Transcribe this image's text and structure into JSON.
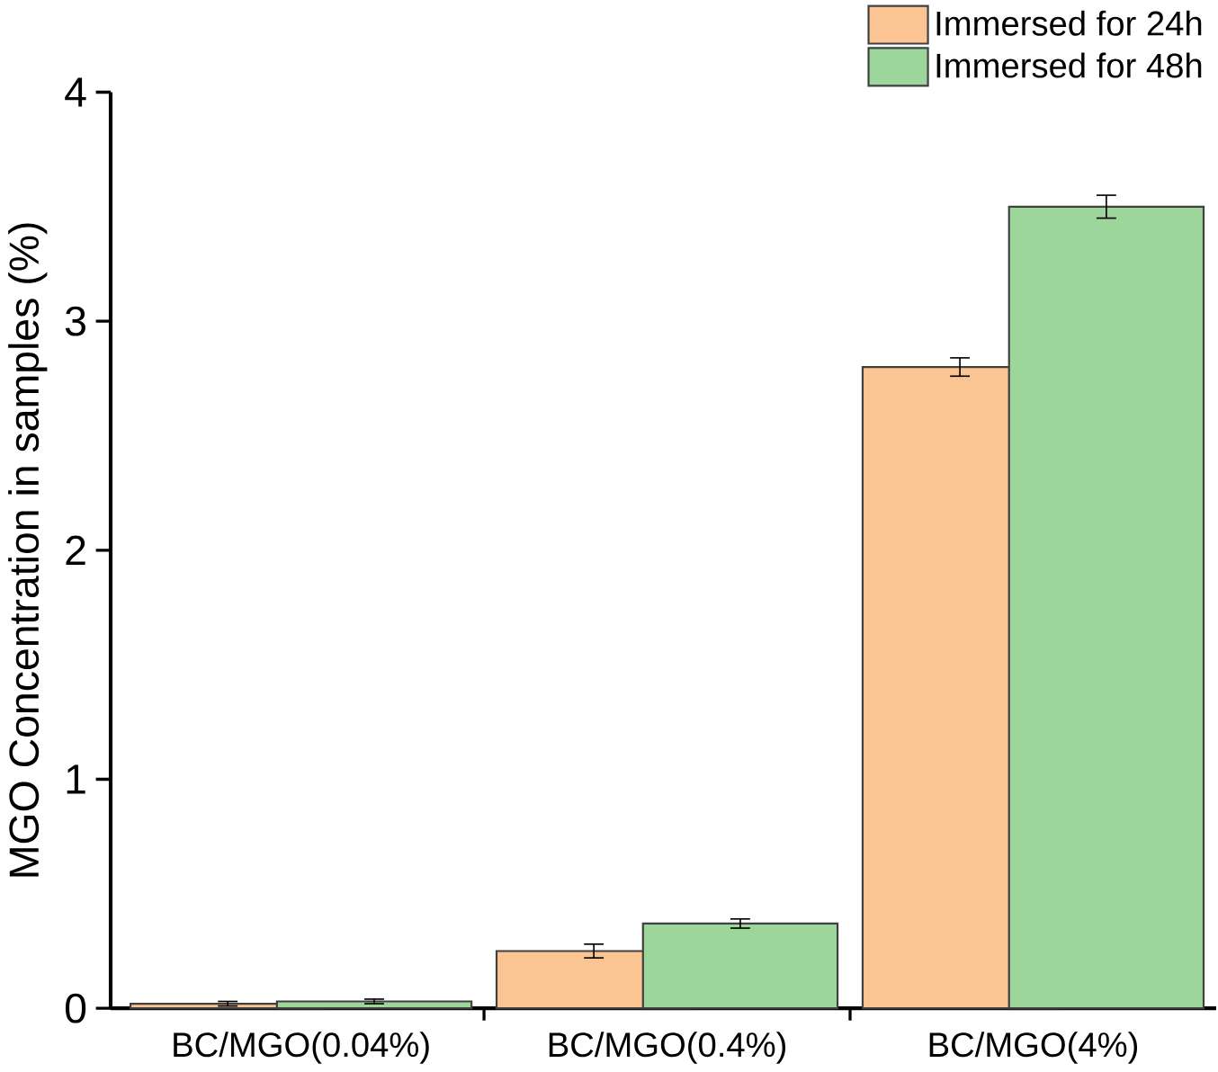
{
  "chart_data": {
    "type": "bar",
    "ylabel": "MGO Concentration in samples (%)",
    "categories": [
      "BC/MGO(0.04%)",
      "BC/MGO(0.4%)",
      "BC/MGO(4%)"
    ],
    "series": [
      {
        "name": "Immersed for 24h",
        "color": "#fbc493",
        "values": [
          0.02,
          0.25,
          2.8
        ],
        "errors": [
          0.01,
          0.03,
          0.04
        ]
      },
      {
        "name": "Immersed for 48h",
        "color": "#9dd69a",
        "values": [
          0.03,
          0.37,
          3.5
        ],
        "errors": [
          0.01,
          0.02,
          0.05
        ]
      }
    ],
    "ylim": [
      0,
      4
    ],
    "yticks": [
      0,
      1,
      2,
      3,
      4
    ],
    "legend": "top right",
    "grid": false
  }
}
